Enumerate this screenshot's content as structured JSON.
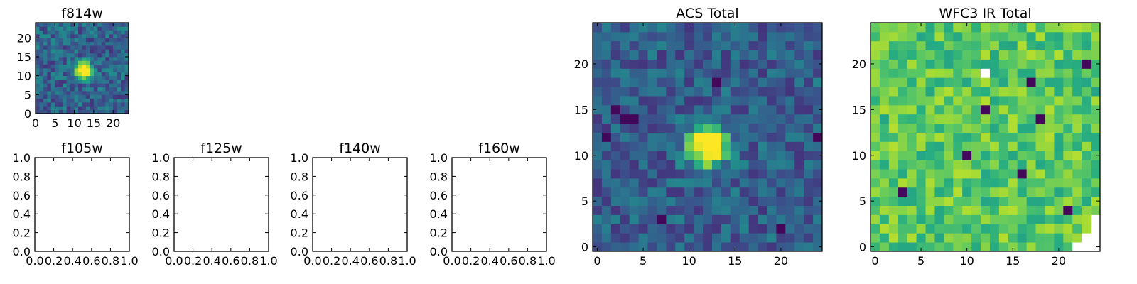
{
  "figure": {
    "colormap": "viridis",
    "colormap_stops": [
      "#440154",
      "#472c7a",
      "#3b518b",
      "#2c718e",
      "#21908d",
      "#27ad81",
      "#5cc863",
      "#aadc32",
      "#fde725"
    ]
  },
  "chart_data": [
    {
      "id": "f814w",
      "type": "heatmap",
      "title": "f814w",
      "grid_size": [
        25,
        25
      ],
      "xlim": [
        0,
        24
      ],
      "ylim": [
        0,
        24
      ],
      "xticks": [
        "0",
        "5",
        "10",
        "15",
        "20"
      ],
      "yticks": [
        "0",
        "5",
        "10",
        "15",
        "20"
      ],
      "source": {
        "x": 12,
        "y": 11,
        "sigma": 1.5,
        "peak": 1.0
      },
      "background": {
        "mean": 0.32,
        "noise": 0.1,
        "seed": 11
      }
    },
    {
      "id": "f105w",
      "type": "heatmap",
      "title": "f105w",
      "empty": true,
      "xlim": [
        0,
        1
      ],
      "ylim": [
        0,
        1
      ],
      "xticks": [
        "0.0",
        "0.2",
        "0.4",
        "0.6",
        "0.8",
        "1.0"
      ],
      "yticks": [
        "0.0",
        "0.2",
        "0.4",
        "0.6",
        "0.8",
        "1.0"
      ]
    },
    {
      "id": "f125w",
      "type": "heatmap",
      "title": "f125w",
      "empty": true,
      "xlim": [
        0,
        1
      ],
      "ylim": [
        0,
        1
      ],
      "xticks": [
        "0.0",
        "0.2",
        "0.4",
        "0.6",
        "0.8",
        "1.0"
      ],
      "yticks": [
        "0.0",
        "0.2",
        "0.4",
        "0.6",
        "0.8",
        "1.0"
      ]
    },
    {
      "id": "f140w",
      "type": "heatmap",
      "title": "f140w",
      "empty": true,
      "xlim": [
        0,
        1
      ],
      "ylim": [
        0,
        1
      ],
      "xticks": [
        "0.0",
        "0.2",
        "0.4",
        "0.6",
        "0.8",
        "1.0"
      ],
      "yticks": [
        "0.0",
        "0.2",
        "0.4",
        "0.6",
        "0.8",
        "1.0"
      ]
    },
    {
      "id": "f160w",
      "type": "heatmap",
      "title": "f160w",
      "empty": true,
      "xlim": [
        0,
        1
      ],
      "ylim": [
        0,
        1
      ],
      "xticks": [
        "0.0",
        "0.2",
        "0.4",
        "0.6",
        "0.8",
        "1.0"
      ],
      "yticks": [
        "0.0",
        "0.2",
        "0.4",
        "0.6",
        "0.8",
        "1.0"
      ]
    },
    {
      "id": "acs-total",
      "type": "heatmap",
      "title": "ACS Total",
      "grid_size": [
        25,
        25
      ],
      "xlim": [
        -0.5,
        24.5
      ],
      "ylim": [
        -0.5,
        24.5
      ],
      "xticks": [
        "0",
        "5",
        "10",
        "15",
        "20"
      ],
      "yticks": [
        "0",
        "5",
        "10",
        "15",
        "20"
      ],
      "source": {
        "x": 12,
        "y": 11,
        "sigma": 1.5,
        "peak": 1.0
      },
      "background": {
        "mean": 0.3,
        "noise": 0.09,
        "seed": 23
      },
      "dark_pixels": [
        [
          3,
          14
        ],
        [
          2,
          15
        ],
        [
          4,
          14
        ],
        [
          1,
          12
        ],
        [
          7,
          3
        ],
        [
          20,
          2
        ],
        [
          13,
          18
        ],
        [
          24,
          12
        ]
      ]
    },
    {
      "id": "wfc3-ir-total",
      "type": "heatmap",
      "title": "WFC3 IR Total",
      "grid_size": [
        25,
        25
      ],
      "xlim": [
        -0.5,
        24.5
      ],
      "ylim": [
        -0.5,
        24.5
      ],
      "xticks": [
        "0",
        "5",
        "10",
        "15",
        "20"
      ],
      "yticks": [
        "0",
        "5",
        "10",
        "15",
        "20"
      ],
      "background": {
        "mean": 0.74,
        "noise": 0.09,
        "seed": 37
      },
      "dark_pixels": [
        [
          10,
          10
        ],
        [
          16,
          8
        ],
        [
          18,
          14
        ],
        [
          21,
          4
        ],
        [
          23,
          20
        ],
        [
          17,
          18
        ],
        [
          12,
          15
        ],
        [
          3,
          6
        ]
      ],
      "blank_pixels": [
        [
          12,
          19
        ],
        [
          22,
          0
        ],
        [
          23,
          0
        ],
        [
          24,
          0
        ],
        [
          23,
          1
        ],
        [
          24,
          1
        ],
        [
          24,
          2
        ],
        [
          24,
          3
        ]
      ]
    }
  ]
}
